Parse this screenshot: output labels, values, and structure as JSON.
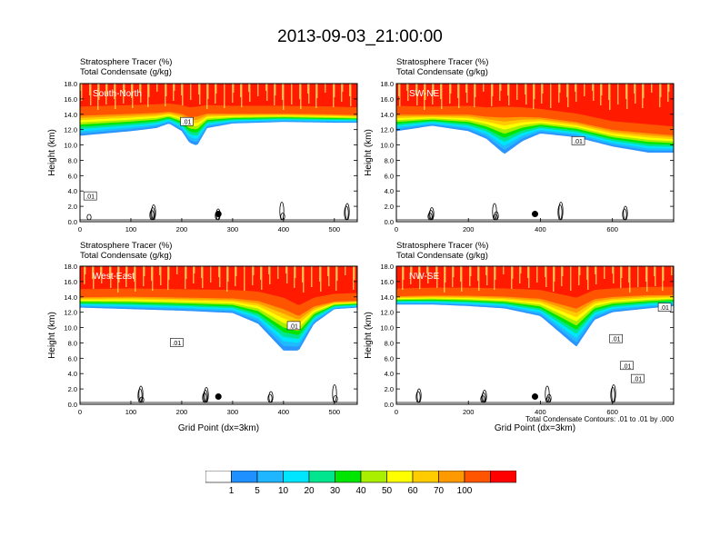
{
  "title": "2013-09-03_21:00:00",
  "panel_labels": {
    "line1": "Stratosphere Tracer   (%)",
    "line2": "Total Condensate   (g/kg)"
  },
  "footnote": "Total Condensate Contours: .01 to .01 by .000",
  "colorbar": {
    "labels": [
      "1",
      "5",
      "10",
      "20",
      "30",
      "40",
      "50",
      "60",
      "70",
      "100"
    ],
    "colors": [
      "#ffffff",
      "#1e90ff",
      "#1fb5ff",
      "#00e5ff",
      "#00e58e",
      "#00e600",
      "#aaee00",
      "#ffff00",
      "#ffcc00",
      "#ff9900",
      "#ff5500",
      "#ff0000"
    ]
  },
  "chart_data": [
    {
      "type": "heatmap",
      "panel": "South-North",
      "title": "South-North",
      "ylabel": "Height (km)",
      "xlabel": "",
      "ylim": [
        0,
        18
      ],
      "xlim": [
        0,
        545
      ],
      "xticks": [
        0,
        100,
        200,
        300,
        400,
        500
      ],
      "yticks": [
        "0.0",
        "2.0",
        "4.0",
        "6.0",
        "8.0",
        "10.0",
        "12.0",
        "14.0",
        "16.0",
        "18.0"
      ],
      "contour_label": ".01",
      "contour_label_pos": [
        [
          20,
          3.3
        ],
        [
          210,
          13.0
        ]
      ],
      "marker": [
        272,
        1.0
      ],
      "tracer_levels_km": {
        "x": [
          0,
          50,
          100,
          150,
          175,
          200,
          215,
          230,
          250,
          300,
          400,
          500,
          545
        ],
        "red_bottom": [
          14.1,
          14.2,
          14.3,
          14.4,
          14.5,
          14.3,
          14.0,
          14.1,
          14.3,
          14.2,
          14.2,
          14.1,
          14.0
        ],
        "tail_bottom": [
          11.2,
          11.5,
          11.8,
          12.2,
          12.8,
          11.8,
          10.3,
          9.9,
          12.2,
          12.8,
          13.0,
          12.9,
          12.9
        ]
      }
    },
    {
      "type": "heatmap",
      "panel": "SW-NE",
      "title": "SW-NE",
      "ylabel": "Height (km)",
      "xlabel": "",
      "ylim": [
        0,
        18
      ],
      "xlim": [
        0,
        770
      ],
      "xticks": [
        0,
        200,
        400,
        600
      ],
      "yticks": [
        "0.0",
        "2.0",
        "4.0",
        "6.0",
        "8.0",
        "10.0",
        "12.0",
        "14.0",
        "16.0",
        "18.0"
      ],
      "contour_label": ".01",
      "contour_label_pos": [
        [
          505,
          10.5
        ]
      ],
      "marker": [
        385,
        1.0
      ],
      "tracer_levels_km": {
        "x": [
          0,
          100,
          200,
          250,
          300,
          350,
          400,
          500,
          600,
          700,
          770
        ],
        "red_bottom": [
          14.2,
          14.1,
          14.2,
          14.0,
          14.1,
          14.0,
          13.8,
          13.2,
          12.2,
          11.8,
          11.5
        ],
        "tail_bottom": [
          11.8,
          12.5,
          11.8,
          10.8,
          8.8,
          10.5,
          11.5,
          11.0,
          9.8,
          9.0,
          9.0
        ]
      }
    },
    {
      "type": "heatmap",
      "panel": "West-East",
      "title": "West-East",
      "ylabel": "Height (km)",
      "xlabel": "Grid Point (dx=3km)",
      "ylim": [
        0,
        18
      ],
      "xlim": [
        0,
        545
      ],
      "xticks": [
        0,
        100,
        200,
        300,
        400,
        500
      ],
      "yticks": [
        "0.0",
        "2.0",
        "4.0",
        "6.0",
        "8.0",
        "10.0",
        "12.0",
        "14.0",
        "16.0",
        "18.0"
      ],
      "contour_label": ".01",
      "contour_label_pos": [
        [
          190,
          8.0
        ],
        [
          420,
          10.2
        ]
      ],
      "marker": [
        272,
        1.0
      ],
      "tracer_levels_km": {
        "x": [
          0,
          100,
          200,
          300,
          350,
          400,
          430,
          460,
          500,
          545
        ],
        "red_bottom": [
          14.1,
          14.2,
          14.1,
          14.0,
          13.8,
          13.0,
          12.0,
          13.0,
          13.5,
          13.6
        ],
        "tail_bottom": [
          12.6,
          12.4,
          12.2,
          11.9,
          10.5,
          7.0,
          7.0,
          10.5,
          12.4,
          12.6
        ]
      }
    },
    {
      "type": "heatmap",
      "panel": "NW-SE",
      "title": "NW-SE",
      "ylabel": "Height (km)",
      "xlabel": "Grid Point (dx=3km)",
      "ylim": [
        0,
        18
      ],
      "xlim": [
        0,
        770
      ],
      "xticks": [
        0,
        200,
        400,
        600
      ],
      "yticks": [
        "0.0",
        "2.0",
        "4.0",
        "6.0",
        "8.0",
        "10.0",
        "12.0",
        "14.0",
        "16.0",
        "18.0"
      ],
      "contour_label": ".01",
      "contour_label_pos": [
        [
          610,
          8.5
        ],
        [
          640,
          5.0
        ],
        [
          670,
          3.3
        ],
        [
          745,
          12.6
        ]
      ],
      "marker": [
        385,
        1.0
      ],
      "tracer_levels_km": {
        "x": [
          0,
          100,
          200,
          300,
          350,
          400,
          500,
          550,
          600,
          700,
          770
        ],
        "red_bottom": [
          14.2,
          14.3,
          14.3,
          14.2,
          14.1,
          14.0,
          13.0,
          14.0,
          14.2,
          14.4,
          14.4
        ],
        "tail_bottom": [
          13.0,
          13.0,
          12.8,
          12.5,
          12.0,
          11.5,
          7.5,
          11.0,
          12.0,
          12.5,
          12.8
        ]
      }
    }
  ]
}
